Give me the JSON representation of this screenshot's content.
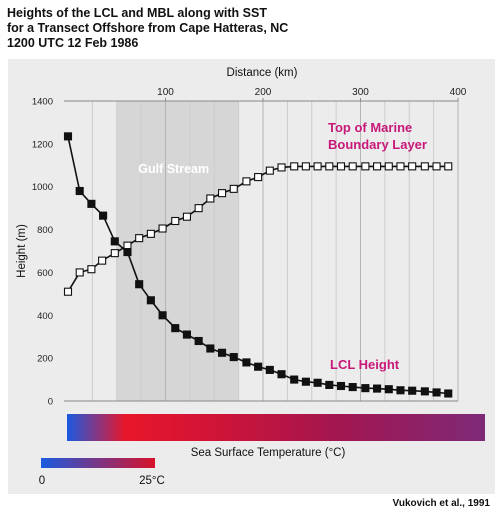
{
  "title_lines": [
    "Heights of the LCL and MBL along with SST",
    "for a Transect Offshore from Cape Hatteras, NC",
    "1200 UTC  12 Feb 1986"
  ],
  "credit": "Vukovich et al., 1991",
  "chart_data": {
    "type": "line",
    "xlabel": "Distance (km)",
    "ylabel": "Height (m)",
    "xlim": [
      0,
      400
    ],
    "ylim": [
      0,
      1400
    ],
    "xticks": [
      100,
      200,
      300,
      400
    ],
    "yticks": [
      0,
      200,
      400,
      600,
      800,
      1000,
      1200,
      1400
    ],
    "grid": "vertical",
    "shaded_region": {
      "label": "Gulf Stream",
      "x": [
        50,
        175
      ]
    },
    "series": [
      {
        "name": "Top of Marine Boundary Layer",
        "name_lines": [
          "Top of Marine",
          "Boundary Layer"
        ],
        "marker": "open-square",
        "color": "#c8187a",
        "x": [
          0,
          12,
          24,
          35,
          48,
          61,
          73,
          85,
          97,
          110,
          122,
          134,
          146,
          158,
          170,
          183,
          195,
          207,
          219,
          232,
          244,
          256,
          268,
          280,
          292,
          305,
          317,
          329,
          341,
          353,
          366,
          378,
          390
        ],
        "y": [
          510,
          600,
          615,
          655,
          690,
          725,
          760,
          780,
          805,
          840,
          860,
          900,
          945,
          970,
          990,
          1025,
          1045,
          1075,
          1090,
          1095,
          1095,
          1095,
          1095,
          1095,
          1095,
          1095,
          1095,
          1095,
          1095,
          1095,
          1095,
          1095,
          1095
        ]
      },
      {
        "name": "LCL Height",
        "name_lines": [
          "LCL Height"
        ],
        "marker": "filled-square",
        "color": "#c8187a",
        "x": [
          0,
          12,
          24,
          36,
          48,
          61,
          73,
          85,
          97,
          110,
          122,
          134,
          146,
          158,
          170,
          183,
          195,
          207,
          219,
          232,
          244,
          256,
          268,
          280,
          292,
          305,
          317,
          329,
          341,
          353,
          366,
          378,
          390
        ],
        "y": [
          1235,
          980,
          920,
          865,
          745,
          695,
          545,
          470,
          400,
          340,
          310,
          280,
          245,
          225,
          205,
          180,
          160,
          145,
          125,
          100,
          90,
          85,
          75,
          70,
          65,
          60,
          58,
          55,
          50,
          48,
          45,
          40,
          35
        ]
      }
    ],
    "colorbar": {
      "label": "Sea Surface Temperature (°C)",
      "stops": [
        "#1a5ae0",
        "#e8162a",
        "#d01437",
        "#a21650",
        "#7e2a78"
      ]
    },
    "legend_scale": {
      "min_label": "0",
      "max_label": "25°C",
      "colors": [
        "#1a5ae0",
        "#d8122a"
      ]
    }
  }
}
